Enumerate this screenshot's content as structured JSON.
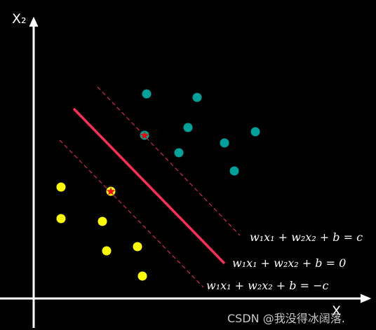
{
  "axes": {
    "y_label": "X₂",
    "x_label": "X"
  },
  "equations": {
    "upper": "w₁x₁ + w₂x₂ + b = c",
    "middle": "w₁x₁ + w₂x₂ + b = 0",
    "lower": "w₁x₁ + w₂x₂ + b = −c"
  },
  "colors": {
    "background": "#000000",
    "axis": "#ffffff",
    "hyperplane": "#ff2d55",
    "margin": "#ff2d55",
    "class_positive": "#00a19a",
    "class_negative": "#ffff00",
    "support_vector_marker": "#ff0000"
  },
  "watermark": "CSDN @我没得冰阔落."
}
